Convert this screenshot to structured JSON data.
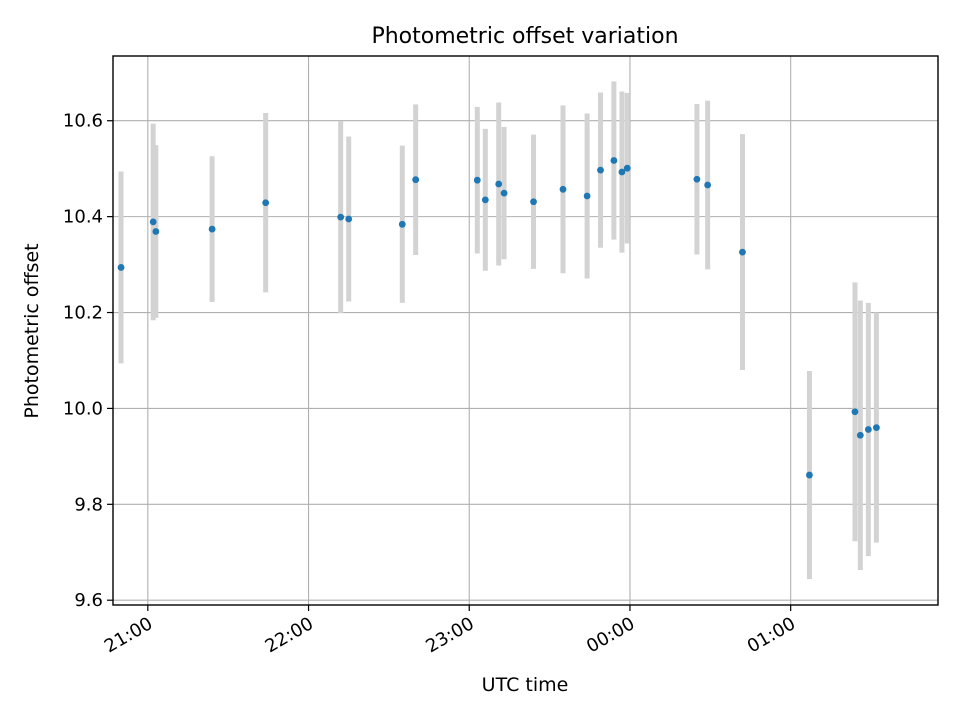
{
  "chart_data": {
    "type": "scatter",
    "title": "Photometric offset variation",
    "xlabel": "UTC time",
    "ylabel": "Photometric offset",
    "x_ticks": [
      "21:00",
      "22:00",
      "23:00",
      "00:00",
      "01:00"
    ],
    "y_ticks": [
      "9.6",
      "9.8",
      "10.0",
      "10.2",
      "10.4",
      "10.6"
    ],
    "xlim": [
      "20:47",
      "01:55"
    ],
    "ylim": [
      9.59,
      10.735
    ],
    "grid": true,
    "colors": {
      "point": "#1f77b4",
      "errorbar": "#d3d3d3",
      "grid": "#b0b0b0"
    },
    "points": [
      {
        "time": "20:50",
        "value": 10.294,
        "err": 0.2
      },
      {
        "time": "21:02",
        "value": 10.389,
        "err": 0.205
      },
      {
        "time": "21:03",
        "value": 10.369,
        "err": 0.18
      },
      {
        "time": "21:24",
        "value": 10.374,
        "err": 0.152
      },
      {
        "time": "21:44",
        "value": 10.429,
        "err": 0.187
      },
      {
        "time": "22:12",
        "value": 10.399,
        "err": 0.2
      },
      {
        "time": "22:15",
        "value": 10.395,
        "err": 0.172
      },
      {
        "time": "22:35",
        "value": 10.384,
        "err": 0.164
      },
      {
        "time": "22:40",
        "value": 10.477,
        "err": 0.157
      },
      {
        "time": "23:03",
        "value": 10.476,
        "err": 0.153
      },
      {
        "time": "23:06",
        "value": 10.435,
        "err": 0.148
      },
      {
        "time": "23:11",
        "value": 10.468,
        "err": 0.17
      },
      {
        "time": "23:13",
        "value": 10.449,
        "err": 0.138
      },
      {
        "time": "23:24",
        "value": 10.431,
        "err": 0.14
      },
      {
        "time": "23:35",
        "value": 10.457,
        "err": 0.175
      },
      {
        "time": "23:44",
        "value": 10.443,
        "err": 0.172
      },
      {
        "time": "23:49",
        "value": 10.497,
        "err": 0.162
      },
      {
        "time": "23:54",
        "value": 10.517,
        "err": 0.165
      },
      {
        "time": "23:57",
        "value": 10.493,
        "err": 0.168
      },
      {
        "time": "23:59",
        "value": 10.501,
        "err": 0.157
      },
      {
        "time": "00:25",
        "value": 10.478,
        "err": 0.157
      },
      {
        "time": "00:29",
        "value": 10.466,
        "err": 0.176
      },
      {
        "time": "00:42",
        "value": 10.326,
        "err": 0.246
      },
      {
        "time": "01:07",
        "value": 9.861,
        "err": 0.217
      },
      {
        "time": "01:24",
        "value": 9.993,
        "err": 0.27
      },
      {
        "time": "01:26",
        "value": 9.944,
        "err": 0.281
      },
      {
        "time": "01:29",
        "value": 9.956,
        "err": 0.264
      },
      {
        "time": "01:32",
        "value": 9.96,
        "err": 0.24
      }
    ]
  }
}
